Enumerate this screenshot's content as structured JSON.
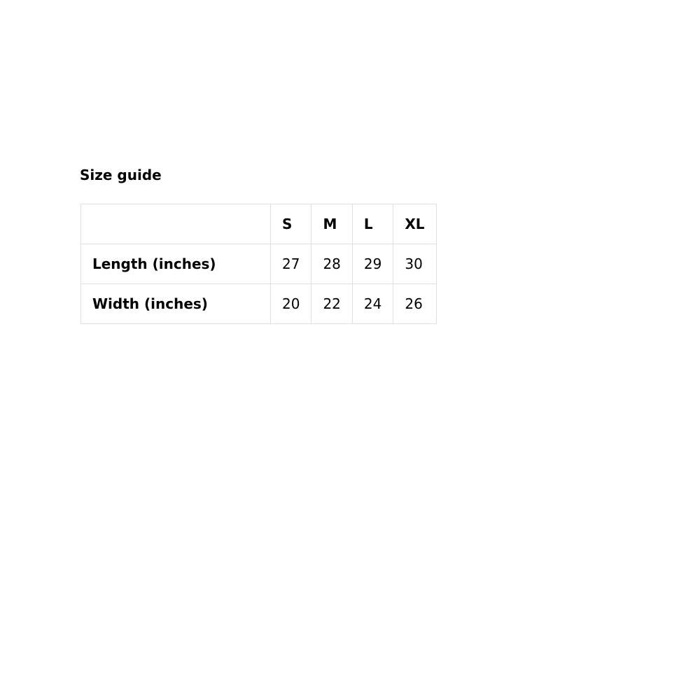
{
  "title": "Size guide",
  "table": {
    "headers": [
      "",
      "S",
      "M",
      "L",
      "XL"
    ],
    "rows": [
      {
        "label": "Length (inches)",
        "values": [
          "27",
          "28",
          "29",
          "30"
        ]
      },
      {
        "label": "Width (inches)",
        "values": [
          "20",
          "22",
          "24",
          "26"
        ]
      }
    ]
  }
}
